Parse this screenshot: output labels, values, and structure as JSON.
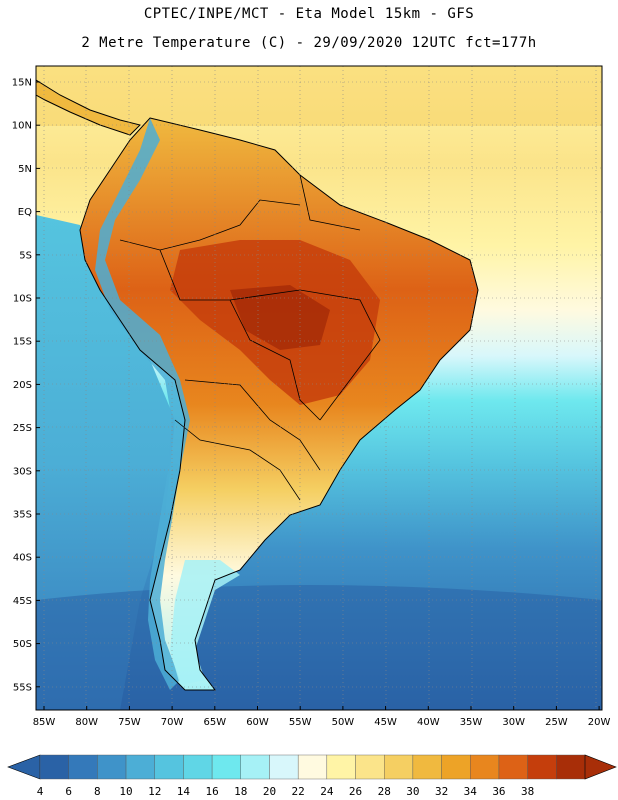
{
  "header": {
    "line1": "CPTEC/INPE/MCT -  Eta Model 15km - GFS",
    "line2": "2 Metre Temperature (C) - 29/09/2020 12UTC fct=177h"
  },
  "axes": {
    "lat_labels": [
      "15N",
      "10N",
      "5N",
      "EQ",
      "5S",
      "10S",
      "15S",
      "20S",
      "25S",
      "30S",
      "35S",
      "40S",
      "45S",
      "50S",
      "55S"
    ],
    "lon_labels": [
      "85W",
      "80W",
      "75W",
      "70W",
      "65W",
      "60W",
      "55W",
      "50W",
      "45W",
      "40W",
      "35W",
      "30W",
      "25W",
      "20W"
    ]
  },
  "legend": {
    "values": [
      "4",
      "6",
      "8",
      "10",
      "12",
      "14",
      "16",
      "18",
      "20",
      "22",
      "24",
      "26",
      "28",
      "30",
      "32",
      "34",
      "36",
      "38"
    ],
    "colors": [
      "#2a62a6",
      "#3479ba",
      "#3f93c9",
      "#4caed6",
      "#55c4df",
      "#60d6e6",
      "#6ee8ee",
      "#a6f1f6",
      "#d8f7fb",
      "#fffae0",
      "#fff4a6",
      "#fbe48a",
      "#f5cf62",
      "#f0b93f",
      "#eda327",
      "#e8861e",
      "#dd6216",
      "#c53e0c",
      "#a82e08"
    ],
    "under_color": "#2a62a6",
    "over_color": "#a82e08"
  }
}
